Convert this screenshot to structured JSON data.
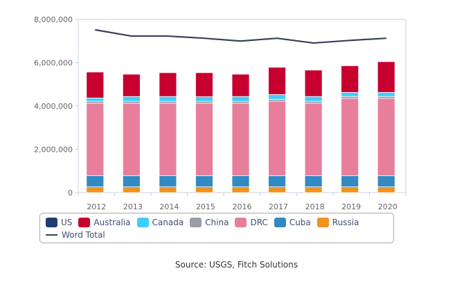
{
  "chart_data": {
    "type": "bar",
    "stacked": true,
    "title": "",
    "xlabel": "",
    "ylabel": "",
    "ylim": [
      0,
      8000000
    ],
    "yticks": [
      0,
      2000000,
      4000000,
      6000000,
      8000000
    ],
    "ytick_labels": [
      "0",
      "2,000,000",
      "4,000,000",
      "6,000,000",
      "8,000,000"
    ],
    "categories": [
      "2012",
      "2013",
      "2014",
      "2015",
      "2016",
      "2017",
      "2018",
      "2019",
      "2020"
    ],
    "series": [
      {
        "name": "Russia",
        "color": "#f0921f",
        "values": [
          270000,
          270000,
          270000,
          270000,
          270000,
          270000,
          270000,
          270000,
          270000
        ]
      },
      {
        "name": "Cuba",
        "color": "#3389c2",
        "values": [
          510000,
          510000,
          510000,
          510000,
          510000,
          510000,
          510000,
          510000,
          510000
        ]
      },
      {
        "name": "DRC",
        "color": "#e77f9c",
        "values": [
          3350000,
          3350000,
          3350000,
          3350000,
          3350000,
          3440000,
          3350000,
          3570000,
          3570000
        ]
      },
      {
        "name": "China",
        "color": "#9a9ca6",
        "values": [
          90000,
          90000,
          90000,
          90000,
          90000,
          90000,
          90000,
          90000,
          90000
        ]
      },
      {
        "name": "Canada",
        "color": "#42ccfc",
        "values": [
          150000,
          220000,
          220000,
          210000,
          220000,
          220000,
          220000,
          190000,
          190000
        ]
      },
      {
        "name": "Australia",
        "color": "#c8002f",
        "values": [
          1200000,
          1030000,
          1100000,
          1110000,
          1030000,
          1260000,
          1220000,
          1230000,
          1420000
        ]
      },
      {
        "name": "US",
        "color": "#1f3d73",
        "values": [
          0,
          0,
          0,
          0,
          0,
          0,
          0,
          0,
          0
        ]
      }
    ],
    "line_series": {
      "name": "Word Total",
      "color": "#38405a",
      "values": [
        7520000,
        7230000,
        7230000,
        7130000,
        7000000,
        7130000,
        6910000,
        7030000,
        7130000
      ]
    },
    "legend": {
      "placement": "bottom",
      "order": [
        "US",
        "Australia",
        "Canada",
        "China",
        "DRC",
        "Cuba",
        "Russia",
        "Word Total"
      ]
    },
    "grid": false
  },
  "legend": {
    "items": [
      {
        "label": "US",
        "color": "#1f3d73"
      },
      {
        "label": "Australia",
        "color": "#c8002f"
      },
      {
        "label": "Canada",
        "color": "#42ccfc"
      },
      {
        "label": "China",
        "color": "#9a9ca6"
      },
      {
        "label": "DRC",
        "color": "#e77f9c"
      },
      {
        "label": "Cuba",
        "color": "#3389c2"
      },
      {
        "label": "Russia",
        "color": "#f0921f"
      }
    ],
    "line_label": "Word Total"
  },
  "source": "Source: USGS, Fitch Solutions"
}
